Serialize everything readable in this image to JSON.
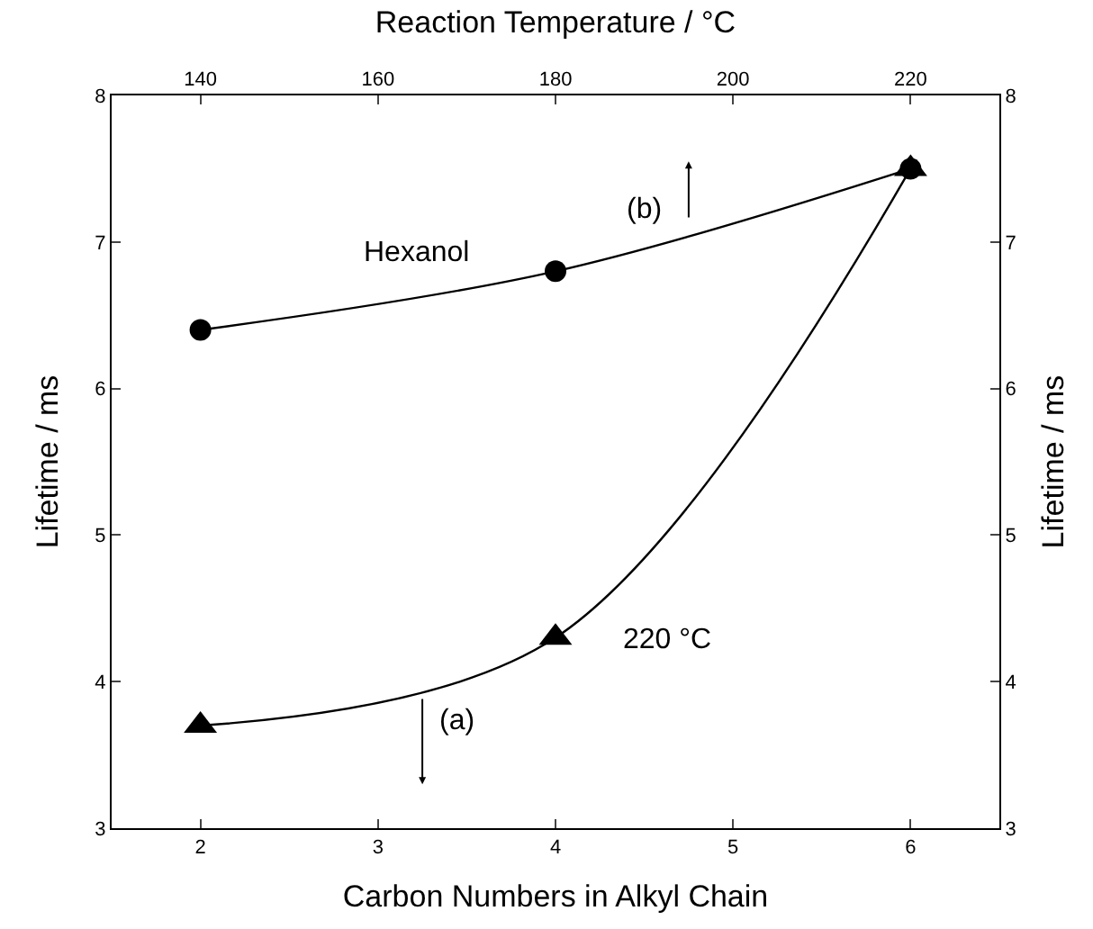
{
  "chart_data": {
    "type": "line",
    "xlabel": "Carbon Numbers in Alkyl Chain",
    "x2label": "Reaction Temperature / °C",
    "ylabel": "Lifetime / ms",
    "y2label": "Lifetime / ms",
    "xlim": [
      1.5,
      6.5
    ],
    "xticks": [
      2,
      3,
      4,
      5,
      6
    ],
    "x2lim": [
      130,
      230
    ],
    "x2ticks": [
      140,
      160,
      180,
      200,
      220
    ],
    "ylim": [
      3,
      8
    ],
    "yticks": [
      3,
      4,
      5,
      6,
      7,
      8
    ],
    "y2lim": [
      3,
      8
    ],
    "y2ticks": [
      3,
      4,
      5,
      6,
      7,
      8
    ],
    "series": [
      {
        "name": "Hexanol",
        "color": "#000000",
        "axis": "x2",
        "marker": "circle",
        "x": [
          140,
          180,
          220
        ],
        "values": [
          6.4,
          6.8,
          7.5
        ]
      },
      {
        "name": "220 °C",
        "color": "#000000",
        "marker": "triangle",
        "x": [
          2,
          4,
          6
        ],
        "values": [
          3.7,
          4.3,
          7.5
        ]
      }
    ],
    "annotations": [
      "(a)",
      "(b)"
    ],
    "legend": false,
    "line_style": "solid"
  }
}
